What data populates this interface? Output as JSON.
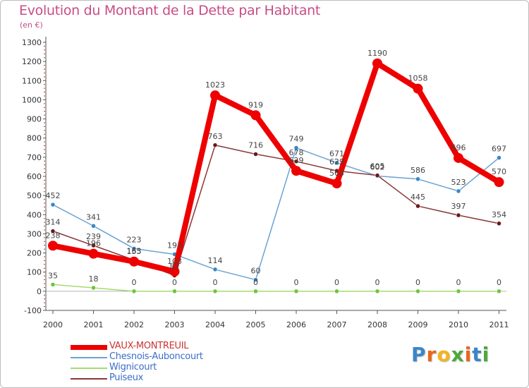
{
  "page": {
    "title": "Evolution du Montant de la Dette par Habitant",
    "subtitle": "(en €)"
  },
  "logo": {
    "text": "Proxiti",
    "letter_colors": [
      "#3a86c8",
      "#e8671c",
      "#f2b51c",
      "#4ea93a",
      "#e8671c",
      "#3a86c8",
      "#4ea93a"
    ]
  },
  "colors": {
    "title": "#c84c86",
    "axis": "#555555",
    "grid": "#cfcfcf"
  },
  "chart_data": {
    "type": "line",
    "title": "Evolution du Montant de la Dette par Habitant",
    "subtitle": "(en €)",
    "xlabel": "",
    "ylabel": "",
    "categories": [
      "2000",
      "2001",
      "2002",
      "2003",
      "2004",
      "2005",
      "2006",
      "2007",
      "2008",
      "2009",
      "2010",
      "2011"
    ],
    "ylim": [
      -100,
      1300
    ],
    "yticks": [
      -100,
      0,
      100,
      200,
      300,
      400,
      500,
      600,
      700,
      800,
      900,
      1000,
      1100,
      1200,
      1300
    ],
    "grid": false,
    "legend_position": "bottom-left",
    "series": [
      {
        "name": "VAUX-MONTREUIL",
        "color": "#ee0000",
        "marker": "#ee0000",
        "width": 8,
        "dot": 7,
        "values": [
          238,
          196,
          155,
          103,
          1023,
          919,
          629,
          563,
          1190,
          1058,
          696,
          570
        ]
      },
      {
        "name": "Chesnois-Auboncourt",
        "color": "#6aa3d3",
        "marker": "#3a86c8",
        "width": 1.5,
        "dot": 3,
        "values": [
          452,
          341,
          223,
          193,
          114,
          60,
          749,
          671,
          602,
          586,
          523,
          697
        ]
      },
      {
        "name": "Wignicourt",
        "color": "#a3dc6e",
        "marker": "#6cc53a",
        "width": 1.5,
        "dot": 3,
        "values": [
          35,
          18,
          0,
          0,
          0,
          0,
          0,
          0,
          0,
          0,
          0,
          0
        ]
      },
      {
        "name": "Puiseux",
        "color": "#8a3838",
        "marker": "#6b1818",
        "width": 1.5,
        "dot": 3,
        "values": [
          314,
          239,
          163,
          82,
          763,
          716,
          678,
          629,
          605,
          445,
          397,
          354
        ]
      }
    ]
  }
}
